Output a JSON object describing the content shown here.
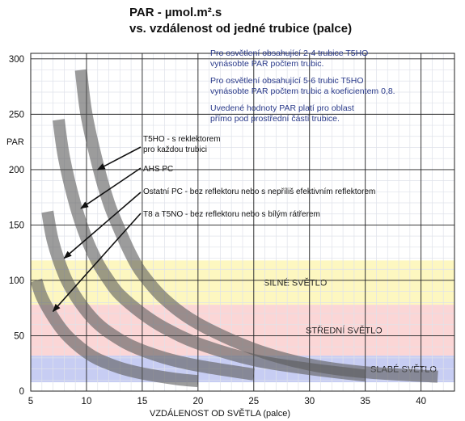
{
  "chart_data": {
    "type": "line",
    "title": "PAR - µmol.m².s",
    "subtitle": "vs. vzdálenost od jedné trubice (palce)",
    "ylabel": "PAR",
    "xlabel": "VZDÁLENOST OD SVĚTLA (palce)",
    "xlim": [
      5,
      43
    ],
    "ylim": [
      0,
      305
    ],
    "x_ticks": [
      5,
      10,
      15,
      20,
      25,
      30,
      35,
      40
    ],
    "y_ticks": [
      0,
      50,
      100,
      150,
      200,
      250,
      300
    ],
    "grid": true,
    "notes": [
      "Pro osvětlení obsahující 2-4 trubice T5HO",
      "vynásobte PAR počtem trubic.",
      "Pro osvětlení obsahující 5-6 trubic T5HO",
      "vynásobte PAR počtem trubic a koeficientem 0,8.",
      "Uvedené hodnoty PAR platí pro oblast",
      "přímo pod prostřední částí trubice."
    ],
    "zones": [
      {
        "label": "SILNÉ SVĚTLO",
        "from": 78,
        "to": 118,
        "color": "#fdf7c0"
      },
      {
        "label": "STŘEDNÍ SVĚTLO",
        "from": 32,
        "to": 78,
        "color": "#fbd6d6"
      },
      {
        "label": "SLABÉ SVĚTLO",
        "from": 8,
        "to": 32,
        "color": "#c7cdf3"
      }
    ],
    "series": [
      {
        "name": "T5HO - s reklektorem pro každou trubici",
        "x": [
          9.5,
          10,
          11,
          12,
          13,
          14,
          15,
          17,
          20,
          25,
          30,
          35,
          41.5
        ],
        "y": [
          290,
          250,
          205,
          170,
          145,
          123,
          106,
          83,
          61,
          38,
          24,
          17,
          13
        ]
      },
      {
        "name": "AHS PC",
        "x": [
          7.5,
          8,
          9,
          10,
          11,
          12,
          13,
          15,
          17,
          20,
          25,
          30,
          35
        ],
        "y": [
          245,
          210,
          168,
          138,
          116,
          100,
          87,
          70,
          57,
          43,
          28,
          20,
          14
        ]
      },
      {
        "name": "Ostatní PC - bez reflektoru nebo s nepříliš efektivním reflektorem",
        "x": [
          6.5,
          7,
          8,
          9,
          10,
          11,
          12,
          14,
          17,
          20,
          25
        ],
        "y": [
          162,
          135,
          105,
          86,
          72,
          61,
          53,
          41,
          30,
          23,
          15
        ]
      },
      {
        "name": "T8 a T5NO - bez reflektoru nebo s bílým rátřerem",
        "x": [
          5.5,
          6,
          7,
          8,
          9,
          10,
          11,
          13,
          15,
          18,
          20
        ],
        "y": [
          100,
          85,
          67,
          53,
          43,
          35,
          29,
          21,
          16,
          11,
          9
        ]
      }
    ],
    "annotations": [
      {
        "lines": [
          "T5HO - s reklektorem",
          "pro každou trubici"
        ],
        "x": 11,
        "y": 200
      },
      {
        "lines": [
          "AHS PC"
        ],
        "x": 9.5,
        "y": 165
      },
      {
        "lines": [
          "Ostatní PC - bez reflektoru nebo s nepříliš efektivním reflektorem"
        ],
        "x": 8,
        "y": 120
      },
      {
        "lines": [
          "T8 a T5NO - bez reflektoru nebo s bílým rátřerem"
        ],
        "x": 7,
        "y": 72
      }
    ]
  }
}
